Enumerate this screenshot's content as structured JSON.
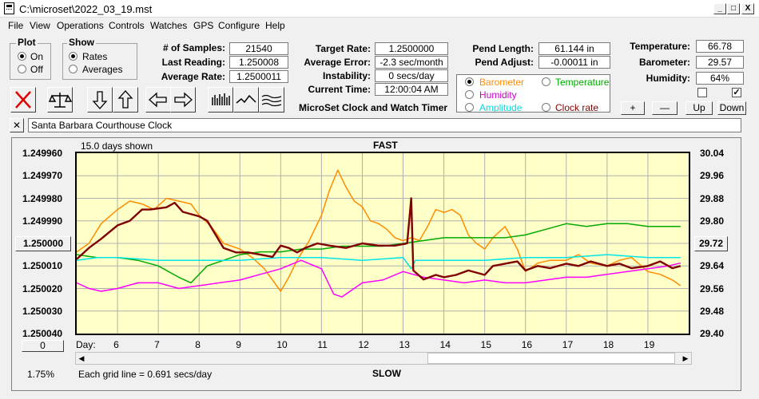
{
  "window": {
    "title": "C:\\microset\\2022_03_19.mst",
    "min": "_",
    "max": "□",
    "close": "X"
  },
  "menu": [
    "File",
    "View",
    "Operations",
    "Controls",
    "Watches",
    "GPS",
    "Configure",
    "Help"
  ],
  "plot_group": {
    "title": "Plot",
    "on": "On",
    "off": "Off",
    "selected": "On"
  },
  "show_group": {
    "title": "Show",
    "rates": "Rates",
    "averages": "Averages",
    "selected": "Rates"
  },
  "stats1": {
    "samples_label": "# of Samples:",
    "samples": "21540",
    "last_label": "Last Reading:",
    "last": "1.250008",
    "avg_label": "Average Rate:",
    "avg": "1.2500011"
  },
  "stats2": {
    "target_label": "Target Rate:",
    "target": "1.2500000",
    "error_label": "Average Error:",
    "error": "-2.3 sec/month",
    "instab_label": "Instability:",
    "instab": "0 secs/day",
    "time_label": "Current Time:",
    "time": "12:00:04 AM"
  },
  "app_name": "MicroSet Clock and Watch Timer",
  "pend": {
    "length_label": "Pend Length:",
    "length": "61.144 in",
    "adjust_label": "Pend Adjust:",
    "adjust": "-0.00011 in"
  },
  "series_select": {
    "barometer": "Barometer",
    "temperature": "Temperature",
    "humidity": "Humidity",
    "amplitude": "Amplitude",
    "clock_rate": "Clock rate",
    "selected": "Barometer"
  },
  "env": {
    "temp_label": "Temperature:",
    "temp": "66.78",
    "baro_label": "Barometer:",
    "baro": "29.57",
    "hum_label": "Humidity:",
    "hum": "64%"
  },
  "adjust_buttons": {
    "plus": "+",
    "minus": "—",
    "up": "Up",
    "down": "Down"
  },
  "checkboxes": [
    false,
    true
  ],
  "clock_name": "Santa Barbara Courthouse Clock",
  "colors": {
    "rate": "#800000",
    "barometer": "#ff8c00",
    "temperature": "#00aa00",
    "humidity": "#ff00ff",
    "amplitude": "#00e5e5",
    "plot_bg": "#ffffc8"
  },
  "toolbar": [
    "x-icon",
    "balance-icon",
    "arrow-down-icon",
    "arrow-up-icon",
    "arrow-left-icon",
    "arrow-right-icon",
    "bars-icon",
    "wave-icon",
    "lines-icon"
  ],
  "chart_data": {
    "type": "line",
    "top_label": "FAST",
    "bottom_label": "SLOW",
    "days_shown": "15.0 days shown",
    "grid_note": "Each grid line = 0.691 secs/day",
    "percent": "1.75%",
    "left_button": "1.250000",
    "right_button": "29.72",
    "bottom_left_button": "0",
    "x_axis_label": "Day:",
    "x_ticks": [
      "6",
      "7",
      "8",
      "9",
      "10",
      "11",
      "12",
      "13",
      "14",
      "15",
      "16",
      "17",
      "18",
      "19"
    ],
    "xlim": [
      5,
      20
    ],
    "y_left_ticks": [
      "1.249960",
      "1.249970",
      "1.249980",
      "1.249990",
      "",
      "1.250010",
      "1.250020",
      "1.250030",
      "1.250040"
    ],
    "ylim_left": [
      1.24996,
      1.25004
    ],
    "y_right_ticks": [
      "30.04",
      "29.96",
      "29.88",
      "29.80",
      "",
      "29.64",
      "29.56",
      "29.48",
      "29.40"
    ],
    "ylim_right": [
      29.4,
      30.04
    ],
    "series": [
      {
        "key": "rate",
        "points": [
          [
            5.0,
            1.250007
          ],
          [
            5.3,
            1.250002
          ],
          [
            5.6,
            1.249998
          ],
          [
            6.0,
            1.249992
          ],
          [
            6.3,
            1.24999
          ],
          [
            6.6,
            1.249985
          ],
          [
            6.8,
            1.249985
          ],
          [
            7.2,
            1.249984
          ],
          [
            7.4,
            1.249982
          ],
          [
            7.6,
            1.249986
          ],
          [
            8.0,
            1.249988
          ],
          [
            8.2,
            1.24999
          ],
          [
            8.4,
            1.249996
          ],
          [
            8.6,
            1.250002
          ],
          [
            8.9,
            1.250004
          ],
          [
            9.2,
            1.250004
          ],
          [
            9.5,
            1.250005
          ],
          [
            9.8,
            1.250006
          ],
          [
            10.0,
            1.250001
          ],
          [
            10.2,
            1.250002
          ],
          [
            10.4,
            1.250004
          ],
          [
            10.6,
            1.250002
          ],
          [
            10.9,
            1.25
          ],
          [
            11.2,
            1.250001
          ],
          [
            11.6,
            1.250002
          ],
          [
            12.0,
            1.25
          ],
          [
            12.4,
            1.250001
          ],
          [
            12.8,
            1.250001
          ],
          [
            13.1,
            1.25
          ],
          [
            13.2,
            1.24998
          ],
          [
            13.25,
            1.250012
          ],
          [
            13.5,
            1.250016
          ],
          [
            13.8,
            1.250014
          ],
          [
            14.0,
            1.250015
          ],
          [
            14.3,
            1.250014
          ],
          [
            14.6,
            1.250012
          ],
          [
            15.0,
            1.250014
          ],
          [
            15.2,
            1.25001
          ],
          [
            15.5,
            1.250009
          ],
          [
            15.8,
            1.250008
          ],
          [
            16.0,
            1.250012
          ],
          [
            16.3,
            1.25001
          ],
          [
            16.6,
            1.250011
          ],
          [
            17.0,
            1.250009
          ],
          [
            17.3,
            1.25001
          ],
          [
            17.6,
            1.250008
          ],
          [
            18.0,
            1.25001
          ],
          [
            18.3,
            1.250009
          ],
          [
            18.6,
            1.250011
          ],
          [
            19.0,
            1.25001
          ],
          [
            19.3,
            1.250008
          ],
          [
            19.6,
            1.250011
          ],
          [
            19.8,
            1.25001
          ]
        ]
      },
      {
        "key": "barometer",
        "points": [
          [
            5.0,
            29.69
          ],
          [
            5.3,
            29.72
          ],
          [
            5.6,
            29.79
          ],
          [
            6.0,
            29.84
          ],
          [
            6.3,
            29.87
          ],
          [
            6.6,
            29.86
          ],
          [
            6.9,
            29.84
          ],
          [
            7.2,
            29.88
          ],
          [
            7.5,
            29.87
          ],
          [
            7.8,
            29.86
          ],
          [
            8.0,
            29.82
          ],
          [
            8.3,
            29.78
          ],
          [
            8.6,
            29.72
          ],
          [
            9.0,
            29.7
          ],
          [
            9.3,
            29.67
          ],
          [
            9.6,
            29.63
          ],
          [
            9.8,
            29.59
          ],
          [
            10.0,
            29.55
          ],
          [
            10.2,
            29.6
          ],
          [
            10.4,
            29.66
          ],
          [
            10.7,
            29.73
          ],
          [
            11.0,
            29.82
          ],
          [
            11.2,
            29.91
          ],
          [
            11.4,
            29.98
          ],
          [
            11.6,
            29.92
          ],
          [
            11.8,
            29.87
          ],
          [
            12.0,
            29.85
          ],
          [
            12.2,
            29.8
          ],
          [
            12.4,
            29.79
          ],
          [
            12.6,
            29.77
          ],
          [
            12.8,
            29.74
          ],
          [
            13.0,
            29.73
          ],
          [
            13.2,
            29.74
          ],
          [
            13.4,
            29.73
          ],
          [
            13.6,
            29.78
          ],
          [
            13.8,
            29.84
          ],
          [
            14.0,
            29.83
          ],
          [
            14.2,
            29.84
          ],
          [
            14.4,
            29.82
          ],
          [
            14.6,
            29.75
          ],
          [
            14.8,
            29.72
          ],
          [
            15.0,
            29.7
          ],
          [
            15.2,
            29.74
          ],
          [
            15.5,
            29.78
          ],
          [
            15.8,
            29.7
          ],
          [
            16.0,
            29.62
          ],
          [
            16.3,
            29.65
          ],
          [
            16.6,
            29.66
          ],
          [
            17.0,
            29.66
          ],
          [
            17.3,
            29.68
          ],
          [
            17.6,
            29.65
          ],
          [
            18.0,
            29.64
          ],
          [
            18.3,
            29.66
          ],
          [
            18.6,
            29.67
          ],
          [
            19.0,
            29.62
          ],
          [
            19.3,
            29.61
          ],
          [
            19.6,
            29.59
          ],
          [
            19.8,
            29.57
          ]
        ]
      },
      {
        "key": "temperature",
        "points": [
          [
            5.0,
            29.68
          ],
          [
            5.5,
            29.67
          ],
          [
            6.0,
            29.67
          ],
          [
            6.5,
            29.66
          ],
          [
            7.0,
            29.64
          ],
          [
            7.5,
            29.6
          ],
          [
            7.8,
            29.58
          ],
          [
            8.2,
            29.64
          ],
          [
            8.6,
            29.66
          ],
          [
            9.0,
            29.68
          ],
          [
            9.5,
            29.69
          ],
          [
            10.0,
            29.69
          ],
          [
            10.5,
            29.7
          ],
          [
            11.0,
            29.7
          ],
          [
            11.5,
            29.71
          ],
          [
            12.0,
            29.71
          ],
          [
            12.5,
            29.71
          ],
          [
            13.0,
            29.72
          ],
          [
            13.5,
            29.73
          ],
          [
            14.0,
            29.74
          ],
          [
            14.5,
            29.74
          ],
          [
            15.0,
            29.74
          ],
          [
            15.5,
            29.74
          ],
          [
            16.0,
            29.75
          ],
          [
            16.5,
            29.77
          ],
          [
            17.0,
            29.79
          ],
          [
            17.5,
            29.78
          ],
          [
            18.0,
            29.79
          ],
          [
            18.5,
            29.79
          ],
          [
            19.0,
            29.78
          ],
          [
            19.5,
            29.78
          ],
          [
            19.8,
            29.78
          ]
        ]
      },
      {
        "key": "humidity",
        "points": [
          [
            5.0,
            29.58
          ],
          [
            5.3,
            29.56
          ],
          [
            5.6,
            29.55
          ],
          [
            6.0,
            29.56
          ],
          [
            6.5,
            29.58
          ],
          [
            7.0,
            29.58
          ],
          [
            7.5,
            29.56
          ],
          [
            8.0,
            29.57
          ],
          [
            8.5,
            29.58
          ],
          [
            9.0,
            29.59
          ],
          [
            9.5,
            29.61
          ],
          [
            10.0,
            29.63
          ],
          [
            10.5,
            29.66
          ],
          [
            11.0,
            29.63
          ],
          [
            11.3,
            29.54
          ],
          [
            11.5,
            29.53
          ],
          [
            12.0,
            29.58
          ],
          [
            12.5,
            29.59
          ],
          [
            13.0,
            29.62
          ],
          [
            13.5,
            29.6
          ],
          [
            14.0,
            29.59
          ],
          [
            14.5,
            29.58
          ],
          [
            15.0,
            29.59
          ],
          [
            15.5,
            29.58
          ],
          [
            16.0,
            29.58
          ],
          [
            16.5,
            29.59
          ],
          [
            17.0,
            29.6
          ],
          [
            17.5,
            29.6
          ],
          [
            18.0,
            29.61
          ],
          [
            18.5,
            29.62
          ],
          [
            19.0,
            29.63
          ],
          [
            19.5,
            29.64
          ],
          [
            19.8,
            29.65
          ]
        ]
      },
      {
        "key": "amplitude",
        "points": [
          [
            5.0,
            29.66
          ],
          [
            5.5,
            29.67
          ],
          [
            6.0,
            29.67
          ],
          [
            7.0,
            29.66
          ],
          [
            8.0,
            29.66
          ],
          [
            9.0,
            29.66
          ],
          [
            10.0,
            29.67
          ],
          [
            11.0,
            29.67
          ],
          [
            12.0,
            29.66
          ],
          [
            13.0,
            29.67
          ],
          [
            13.2,
            29.63
          ],
          [
            13.3,
            29.66
          ],
          [
            14.0,
            29.66
          ],
          [
            15.0,
            29.66
          ],
          [
            16.0,
            29.67
          ],
          [
            17.0,
            29.67
          ],
          [
            18.0,
            29.68
          ],
          [
            19.0,
            29.67
          ],
          [
            19.8,
            29.67
          ]
        ]
      }
    ]
  }
}
